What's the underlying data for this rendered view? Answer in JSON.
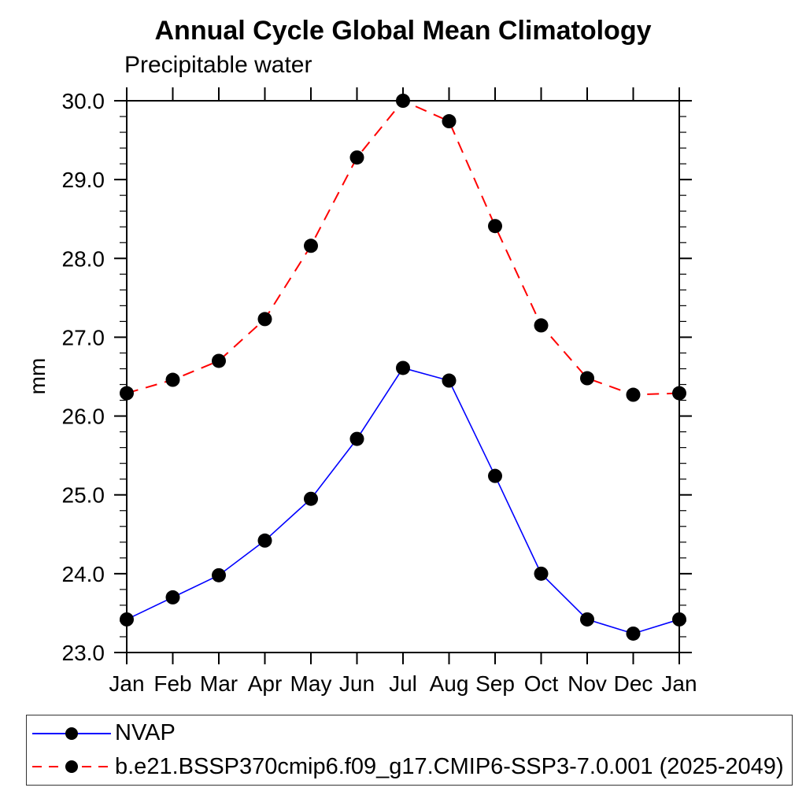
{
  "chart_data": {
    "type": "line",
    "title": "Annual Cycle Global Mean Climatology",
    "subtitle": "Precipitable water",
    "ylabel": "mm",
    "xlabel": "",
    "categories": [
      "Jan",
      "Feb",
      "Mar",
      "Apr",
      "May",
      "Jun",
      "Jul",
      "Aug",
      "Sep",
      "Oct",
      "Nov",
      "Dec",
      "Jan"
    ],
    "ylim": [
      23.0,
      30.0
    ],
    "y_major_step": 1.0,
    "y_minor_step": 0.2,
    "y_tick_labels": [
      "23.0",
      "24.0",
      "25.0",
      "26.0",
      "27.0",
      "28.0",
      "29.0",
      "30.0"
    ],
    "grid": false,
    "legend_position": "bottom-left",
    "axis_color": "#000000",
    "marker_radius_px": 9,
    "series": [
      {
        "name": "NVAP",
        "color": "#0000ff",
        "line_style": "solid",
        "marker": "circle",
        "marker_color": "#000000",
        "values": [
          23.42,
          23.7,
          23.98,
          24.42,
          24.95,
          25.71,
          26.61,
          26.45,
          25.24,
          24.0,
          23.42,
          23.24,
          23.42
        ]
      },
      {
        "name": "b.e21.BSSP370cmip6.f09_g17.CMIP6-SSP3-7.0.001 (2025-2049)",
        "color": "#ff0000",
        "line_style": "dashed",
        "marker": "circle",
        "marker_color": "#000000",
        "values": [
          26.29,
          26.46,
          26.7,
          27.23,
          28.16,
          29.28,
          30.0,
          29.74,
          28.41,
          27.15,
          26.48,
          26.27,
          26.29
        ]
      }
    ]
  }
}
